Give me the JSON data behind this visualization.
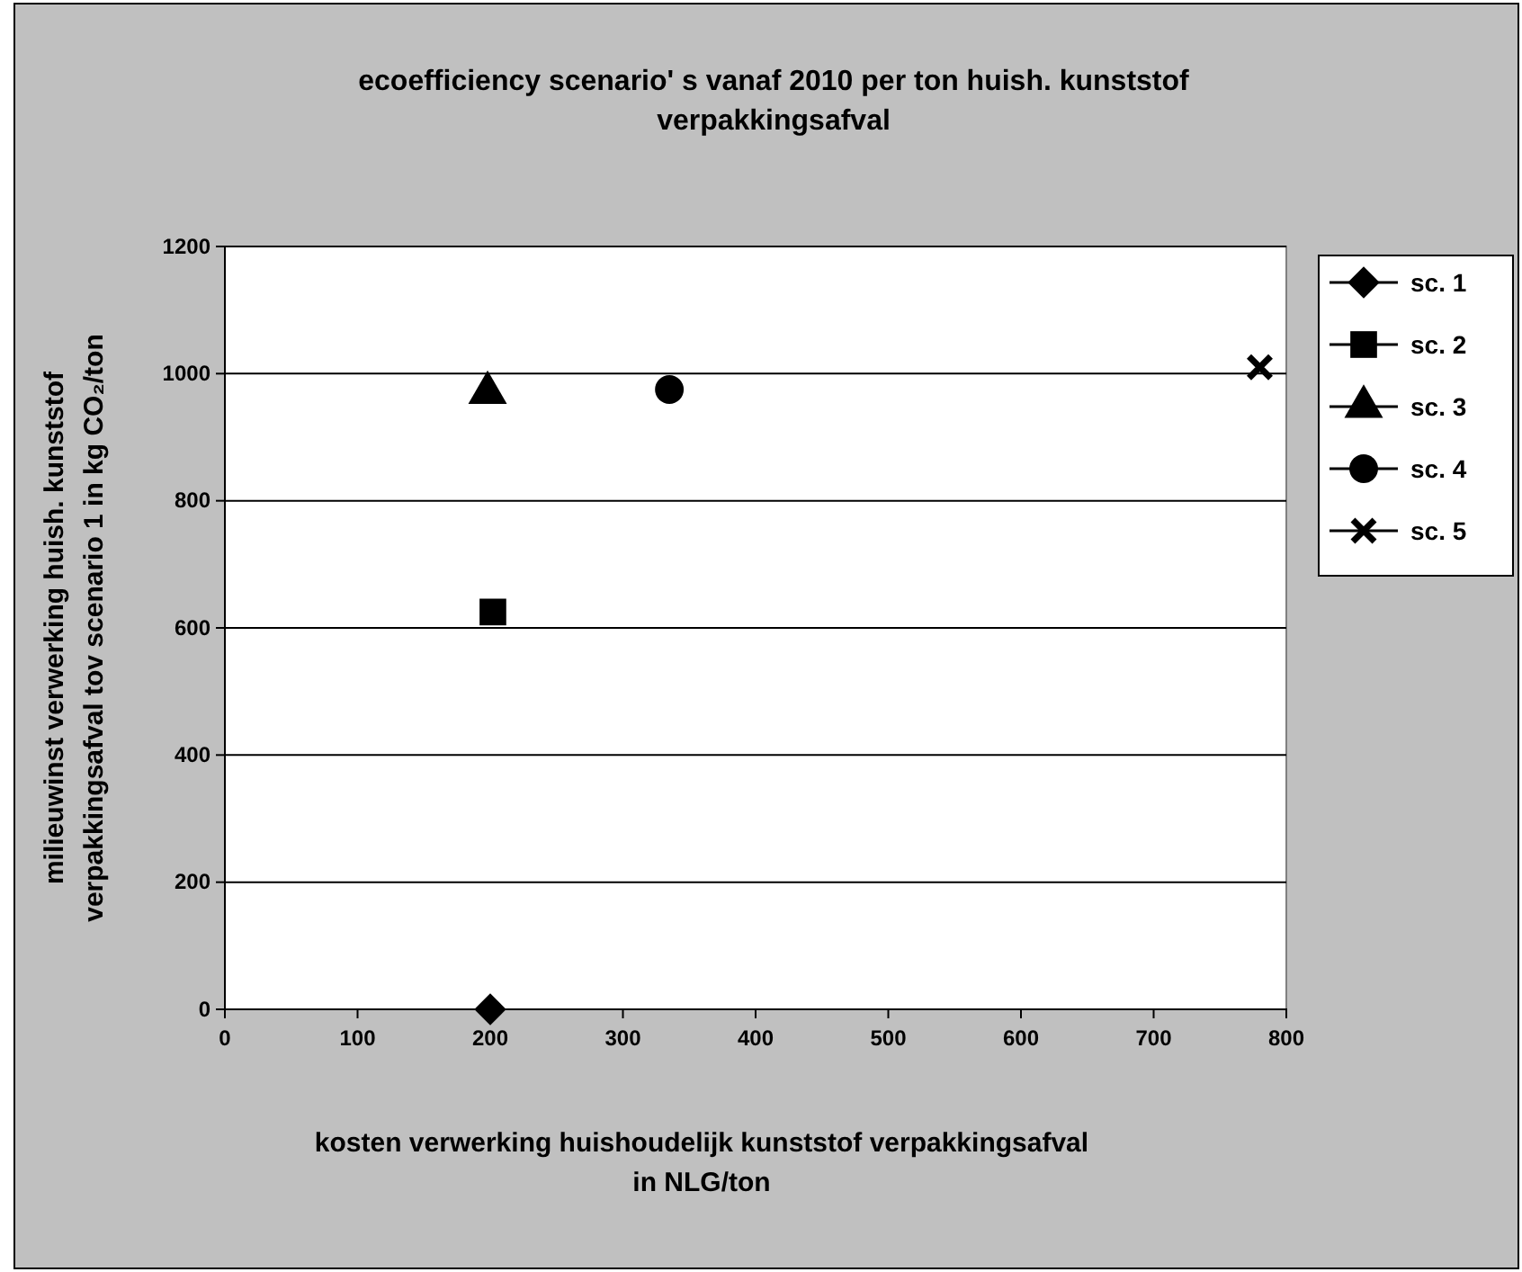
{
  "chart_data": {
    "type": "scatter",
    "title": "ecoefficiency scenario' s  vanaf  2010 per ton huish. kunststof\nverpakkingsafval",
    "xlabel": "kosten verwerking huishoudelijk kunststof verpakkingsafval\nin NLG/ton",
    "ylabel": "milieuwinst verwerking huish.  kunststof\nverpakkingsafval tov scenario 1 in kg CO₂/ton",
    "xlim": [
      0,
      800
    ],
    "xticks": [
      0,
      100,
      200,
      300,
      400,
      500,
      600,
      700,
      800
    ],
    "ylim": [
      0,
      1200
    ],
    "yticks": [
      0,
      200,
      400,
      600,
      800,
      1000,
      1200
    ],
    "grid": "y",
    "legend": "right",
    "series": [
      {
        "name": "sc. 1",
        "color": "#000000",
        "marker": "diamond",
        "x": [
          200
        ],
        "values": [
          0
        ]
      },
      {
        "name": "sc. 2",
        "color": "#000000",
        "marker": "square",
        "x": [
          202
        ],
        "values": [
          625
        ]
      },
      {
        "name": "sc. 3",
        "color": "#000000",
        "marker": "triangle",
        "x": [
          198
        ],
        "values": [
          970
        ]
      },
      {
        "name": "sc. 4",
        "color": "#000000",
        "marker": "circle",
        "x": [
          335
        ],
        "values": [
          975
        ]
      },
      {
        "name": "sc. 5",
        "color": "#000000",
        "marker": "cross",
        "x": [
          780
        ],
        "values": [
          1010
        ]
      }
    ]
  }
}
